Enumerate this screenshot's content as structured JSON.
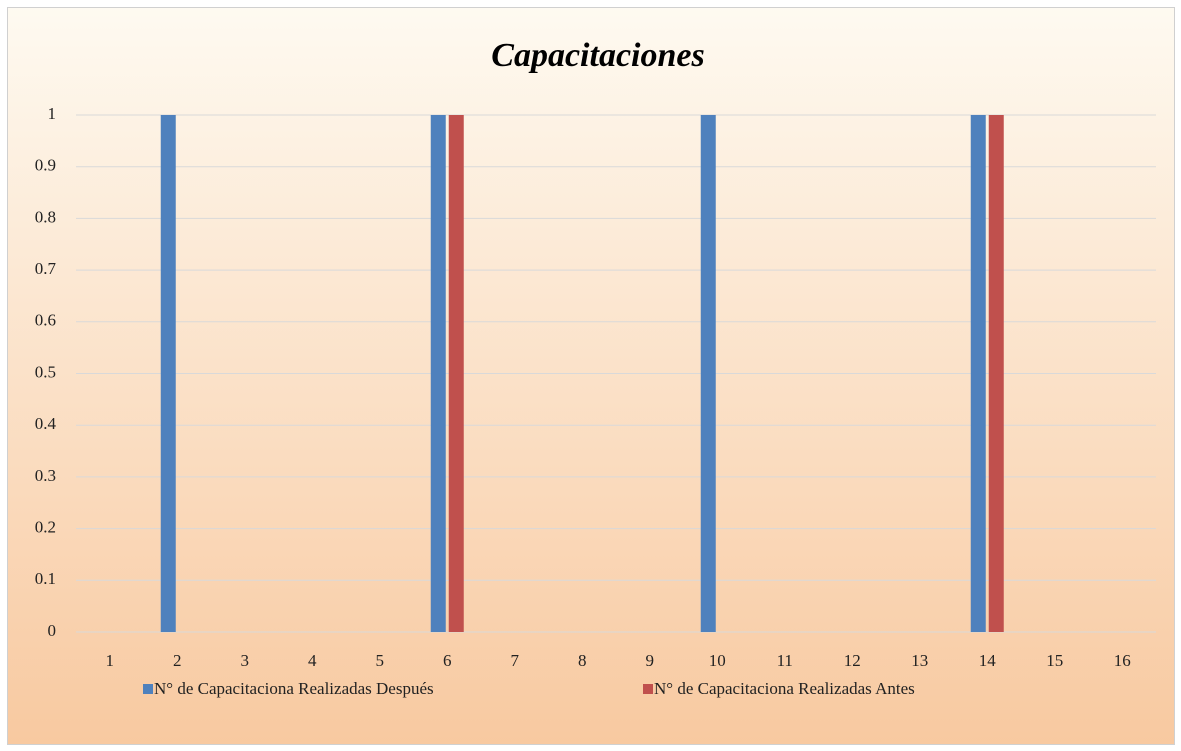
{
  "chart_data": {
    "type": "bar",
    "title": "Capacitaciones",
    "categories": [
      "1",
      "2",
      "3",
      "4",
      "5",
      "6",
      "7",
      "8",
      "9",
      "10",
      "11",
      "12",
      "13",
      "14",
      "15",
      "16"
    ],
    "series": [
      {
        "name": "N° de Capacitaciona Realizadas Después",
        "color": "#4f81bd",
        "values": [
          0,
          1,
          0,
          0,
          0,
          1,
          0,
          0,
          0,
          1,
          0,
          0,
          0,
          1,
          0,
          0
        ]
      },
      {
        "name": "N° de Capacitaciona Realizadas Antes",
        "color": "#c0504d",
        "values": [
          0,
          0,
          0,
          0,
          0,
          1,
          0,
          0,
          0,
          0,
          0,
          0,
          0,
          1,
          0,
          0
        ]
      }
    ],
    "ylim": [
      0,
      1
    ],
    "yticks": [
      0,
      0.1,
      0.2,
      0.3,
      0.4,
      0.5,
      0.6,
      0.7,
      0.8,
      0.9,
      1
    ],
    "grid": true,
    "legend": "bottom"
  }
}
